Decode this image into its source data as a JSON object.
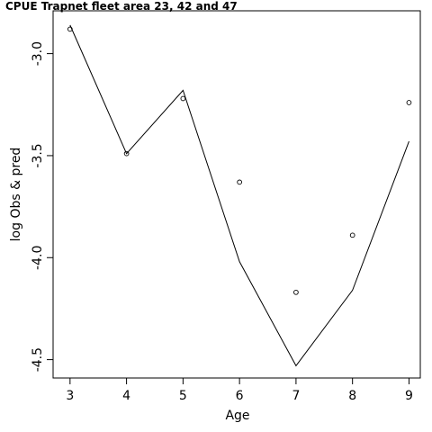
{
  "chart_data": {
    "type": "line",
    "title": "CPUE Trapnet fleet area 23, 42 and 47",
    "xlabel": "Age",
    "ylabel": "log Obs & pred",
    "x": [
      3,
      4,
      5,
      6,
      7,
      8,
      9
    ],
    "xlim": [
      2.7,
      9.2
    ],
    "ylim": [
      -4.59,
      -2.79
    ],
    "xticks": [
      3,
      4,
      5,
      6,
      7,
      8,
      9
    ],
    "xtick_labels": [
      "3",
      "4",
      "5",
      "6",
      "7",
      "8",
      "9"
    ],
    "yticks": [
      -3.0,
      -3.5,
      -4.0,
      -4.5
    ],
    "ytick_labels": [
      "-3.0",
      "-3.5",
      "-4.0",
      "-4.5"
    ],
    "grid": false,
    "series": [
      {
        "kind": "points",
        "marker": "open-circle",
        "values": [
          -2.88,
          -3.49,
          -3.22,
          -3.63,
          -4.17,
          -3.89,
          -3.24
        ]
      },
      {
        "kind": "line",
        "values": [
          -2.86,
          -3.49,
          -3.18,
          -4.02,
          -4.53,
          -4.16,
          -3.43
        ]
      }
    ]
  }
}
